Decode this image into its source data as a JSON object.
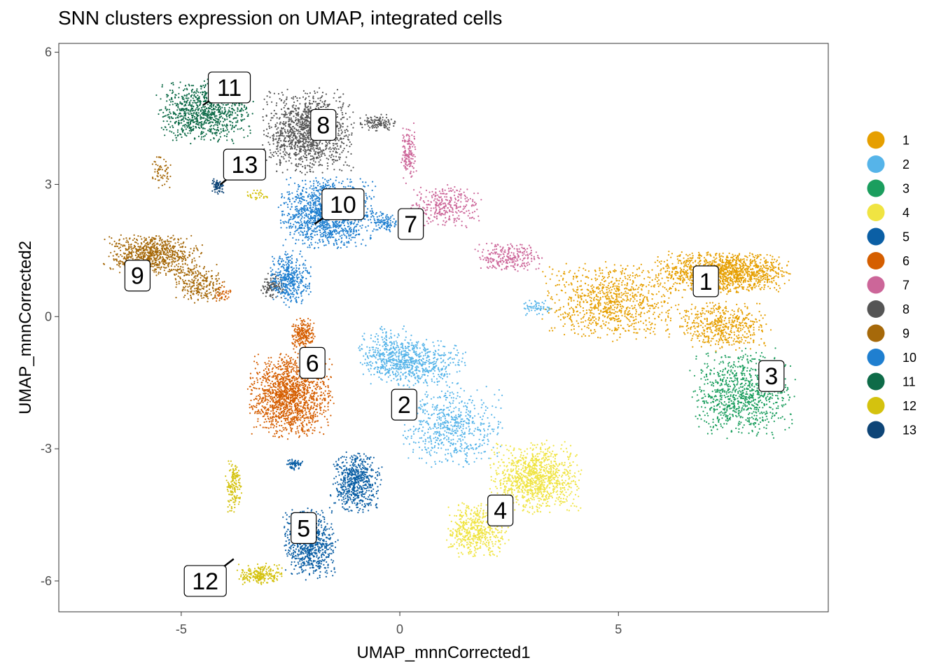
{
  "chart_data": {
    "type": "scatter",
    "title": "SNN clusters expression on UMAP, integrated cells",
    "xlabel": "UMAP_mnnCorrected1",
    "ylabel": "UMAP_mnnCorrected2",
    "xlim": [
      -7.8,
      9.8
    ],
    "ylim": [
      -6.7,
      6.2
    ],
    "x_ticks": [
      -5,
      0,
      5
    ],
    "x_tick_labels": [
      "-5",
      "0",
      "5"
    ],
    "y_ticks": [
      -6,
      -3,
      0,
      3,
      6
    ],
    "y_tick_labels": [
      "-6",
      "-3",
      "0",
      "3",
      "6"
    ],
    "grid": false,
    "legend_position": "right",
    "legend": [
      {
        "label": "1",
        "color": "#E69F00"
      },
      {
        "label": "2",
        "color": "#56B4E9"
      },
      {
        "label": "3",
        "color": "#1B9E5E"
      },
      {
        "label": "4",
        "color": "#F0E442"
      },
      {
        "label": "5",
        "color": "#0B5FA5"
      },
      {
        "label": "6",
        "color": "#D55E00"
      },
      {
        "label": "7",
        "color": "#CC6699"
      },
      {
        "label": "8",
        "color": "#555555"
      },
      {
        "label": "9",
        "color": "#A6690A"
      },
      {
        "label": "10",
        "color": "#1F7FD0"
      },
      {
        "label": "11",
        "color": "#0E6B48"
      },
      {
        "label": "12",
        "color": "#D4C20E"
      },
      {
        "label": "13",
        "color": "#0E4577"
      }
    ],
    "series": [
      {
        "name": "1",
        "color": "#E69F00",
        "regions": [
          {
            "x": [
              5.8,
              9.0
            ],
            "y": [
              0.5,
              1.5
            ],
            "n": 1300
          },
          {
            "x": [
              3.2,
              6.5
            ],
            "y": [
              -0.6,
              1.3
            ],
            "n": 900
          },
          {
            "x": [
              6.3,
              8.5
            ],
            "y": [
              -0.8,
              0.4
            ],
            "n": 500
          }
        ]
      },
      {
        "name": "2",
        "color": "#56B4E9",
        "regions": [
          {
            "x": [
              -0.8,
              1.6
            ],
            "y": [
              -1.6,
              -0.5
            ],
            "n": 500
          },
          {
            "x": [
              0.0,
              2.4
            ],
            "y": [
              -3.5,
              -1.5
            ],
            "n": 600
          },
          {
            "x": [
              -1.0,
              0.5
            ],
            "y": [
              -1.5,
              -0.2
            ],
            "n": 300
          },
          {
            "x": [
              2.8,
              3.5
            ],
            "y": [
              0.0,
              0.4
            ],
            "n": 60
          }
        ]
      },
      {
        "name": "3",
        "color": "#1B9E5E",
        "regions": [
          {
            "x": [
              6.6,
              9.1
            ],
            "y": [
              -2.8,
              -0.7
            ],
            "n": 900
          }
        ]
      },
      {
        "name": "4",
        "color": "#F0E442",
        "regions": [
          {
            "x": [
              2.0,
              4.2
            ],
            "y": [
              -4.5,
              -2.8
            ],
            "n": 1000
          },
          {
            "x": [
              1.0,
              2.5
            ],
            "y": [
              -5.5,
              -4.2
            ],
            "n": 500
          }
        ]
      },
      {
        "name": "5",
        "color": "#0B5FA5",
        "regions": [
          {
            "x": [
              -1.6,
              -0.4
            ],
            "y": [
              -4.5,
              -3.0
            ],
            "n": 600
          },
          {
            "x": [
              -2.7,
              -1.4
            ],
            "y": [
              -6.0,
              -4.3
            ],
            "n": 700
          },
          {
            "x": [
              -2.6,
              -2.2
            ],
            "y": [
              -3.5,
              -3.2
            ],
            "n": 60
          }
        ]
      },
      {
        "name": "6",
        "color": "#D55E00",
        "regions": [
          {
            "x": [
              -3.5,
              -1.5
            ],
            "y": [
              -2.8,
              -0.8
            ],
            "n": 1400
          },
          {
            "x": [
              -2.5,
              -1.9
            ],
            "y": [
              -0.8,
              0.0
            ],
            "n": 200
          },
          {
            "x": [
              -4.3,
              -3.8
            ],
            "y": [
              0.3,
              0.8
            ],
            "n": 40
          }
        ]
      },
      {
        "name": "7",
        "color": "#CC6699",
        "regions": [
          {
            "x": [
              0.0,
              0.4
            ],
            "y": [
              3.0,
              4.4
            ],
            "n": 150
          },
          {
            "x": [
              0.2,
              1.9
            ],
            "y": [
              2.0,
              3.0
            ],
            "n": 300
          },
          {
            "x": [
              1.7,
              3.3
            ],
            "y": [
              1.0,
              1.7
            ],
            "n": 250
          }
        ]
      },
      {
        "name": "8",
        "color": "#555555",
        "regions": [
          {
            "x": [
              -3.2,
              -1.0
            ],
            "y": [
              3.2,
              5.2
            ],
            "n": 1200
          },
          {
            "x": [
              -1.0,
              0.0
            ],
            "y": [
              4.2,
              4.6
            ],
            "n": 120
          },
          {
            "x": [
              -3.2,
              -2.6
            ],
            "y": [
              0.4,
              1.0
            ],
            "n": 120
          }
        ]
      },
      {
        "name": "9",
        "color": "#A6690A",
        "regions": [
          {
            "x": [
              -6.8,
              -4.5
            ],
            "y": [
              0.9,
              1.9
            ],
            "n": 800
          },
          {
            "x": [
              -5.2,
              -4.0
            ],
            "y": [
              0.3,
              1.2
            ],
            "n": 250
          },
          {
            "x": [
              -5.7,
              -5.2
            ],
            "y": [
              2.8,
              3.8
            ],
            "n": 60
          }
        ]
      },
      {
        "name": "10",
        "color": "#1F7FD0",
        "regions": [
          {
            "x": [
              -2.8,
              -0.5
            ],
            "y": [
              1.5,
              3.2
            ],
            "n": 1300
          },
          {
            "x": [
              -3.0,
              -2.0
            ],
            "y": [
              0.2,
              1.5
            ],
            "n": 400
          },
          {
            "x": [
              -0.7,
              0.0
            ],
            "y": [
              1.9,
              2.4
            ],
            "n": 100
          }
        ]
      },
      {
        "name": "11",
        "color": "#0E6B48",
        "regions": [
          {
            "x": [
              -5.6,
              -3.3
            ],
            "y": [
              3.9,
              5.4
            ],
            "n": 900
          }
        ]
      },
      {
        "name": "12",
        "color": "#D4C20E",
        "regions": [
          {
            "x": [
              -4.0,
              -3.6
            ],
            "y": [
              -4.5,
              -3.1
            ],
            "n": 150
          },
          {
            "x": [
              -3.8,
              -2.6
            ],
            "y": [
              -6.1,
              -5.6
            ],
            "n": 220
          },
          {
            "x": [
              -3.5,
              -3.0
            ],
            "y": [
              2.6,
              2.9
            ],
            "n": 30
          }
        ]
      },
      {
        "name": "13",
        "color": "#0E4577",
        "regions": [
          {
            "x": [
              -4.3,
              -4.0
            ],
            "y": [
              2.75,
              3.15
            ],
            "n": 70
          }
        ]
      }
    ],
    "cluster_labels": [
      {
        "label": "1",
        "x": 7.0,
        "y": 0.8
      },
      {
        "label": "2",
        "x": 0.1,
        "y": -2.0
      },
      {
        "label": "3",
        "x": 8.5,
        "y": -1.35
      },
      {
        "label": "4",
        "x": 2.3,
        "y": -4.4
      },
      {
        "label": "5",
        "x": -2.2,
        "y": -4.8
      },
      {
        "label": "6",
        "x": -2.0,
        "y": -1.05
      },
      {
        "label": "7",
        "x": 0.25,
        "y": 2.1
      },
      {
        "label": "8",
        "x": -1.75,
        "y": 4.35
      },
      {
        "label": "9",
        "x": -6.0,
        "y": 0.93
      },
      {
        "label": "10",
        "x": -1.3,
        "y": 2.55,
        "leader_to": [
          -1.95,
          2.1
        ]
      },
      {
        "label": "11",
        "x": -3.9,
        "y": 5.2,
        "leader_to": [
          -4.5,
          4.8
        ]
      },
      {
        "label": "12",
        "x": -4.45,
        "y": -6.0,
        "leader_to": [
          -3.8,
          -5.5
        ]
      },
      {
        "label": "13",
        "x": -3.55,
        "y": 3.45,
        "leader_to": [
          -4.1,
          3.0
        ]
      }
    ]
  }
}
